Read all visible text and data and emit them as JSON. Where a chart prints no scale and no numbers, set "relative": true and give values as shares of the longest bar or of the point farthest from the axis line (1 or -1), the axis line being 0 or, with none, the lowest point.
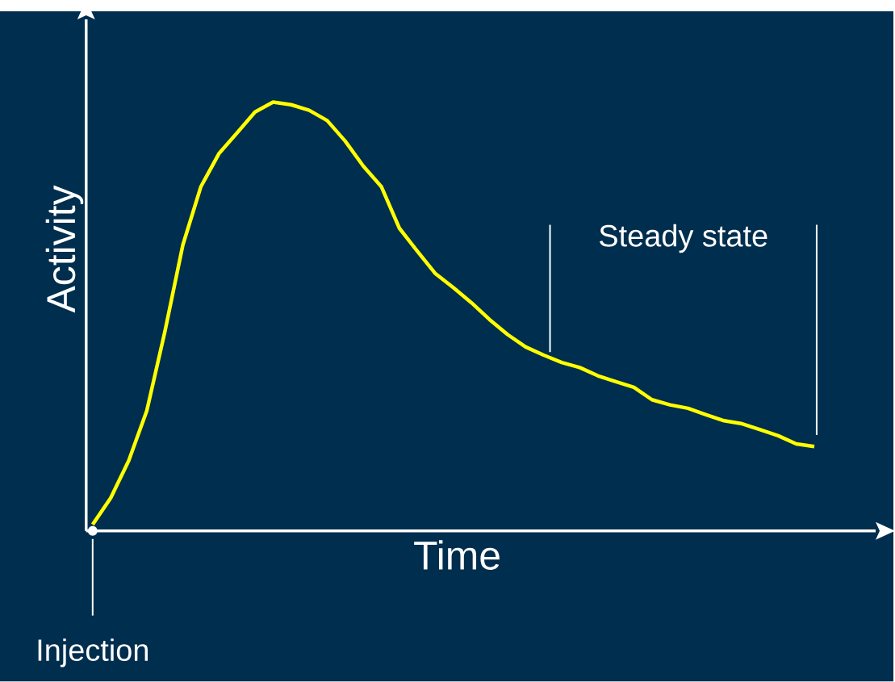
{
  "chart_data": {
    "type": "line",
    "relative": true,
    "xlabel": "Time",
    "ylabel": "Activity",
    "color": "#ffff00",
    "categories": [
      null,
      null,
      null,
      null,
      null,
      null,
      null,
      null,
      null,
      null,
      null,
      null,
      null,
      null,
      null,
      null,
      null,
      null,
      null,
      null,
      null,
      null,
      null,
      null,
      null,
      null,
      null,
      null,
      null,
      null,
      null,
      null,
      null,
      null,
      null,
      null,
      null,
      null,
      null,
      null,
      null
    ],
    "values": [
      0.015,
      0.077,
      0.164,
      0.28,
      0.464,
      0.667,
      0.803,
      0.88,
      0.928,
      0.977,
      1.0,
      0.994,
      0.981,
      0.957,
      0.909,
      0.851,
      0.803,
      0.706,
      0.652,
      0.6,
      0.567,
      0.532,
      0.493,
      0.458,
      0.429,
      0.41,
      0.393,
      0.381,
      0.362,
      0.348,
      0.335,
      0.306,
      0.294,
      0.286,
      0.271,
      0.257,
      0.25,
      0.236,
      0.222,
      0.203,
      0.197
    ],
    "annotations": [
      "Steady state",
      "Injection"
    ],
    "marker": "none"
  }
}
